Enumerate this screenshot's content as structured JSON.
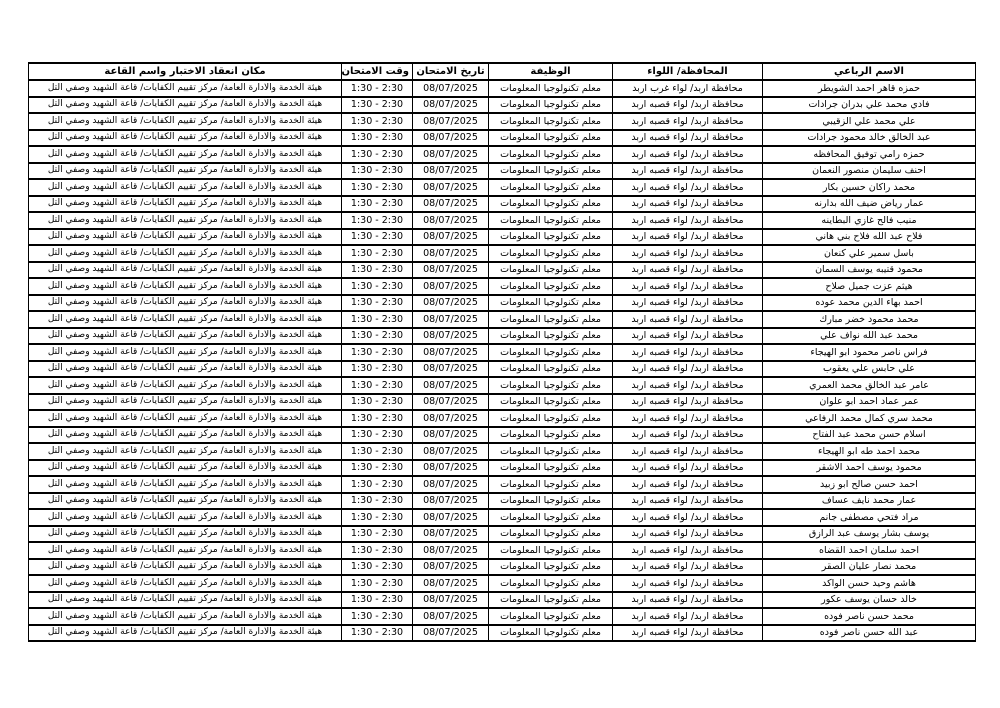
{
  "table": {
    "headers": [
      "الاسم الرباعي",
      "المحافظة/ اللواء",
      "الوظيفة",
      "تاريخ الامتحان",
      "وقت الامتحان",
      "مكان انعقاد الاختبار واسم القاعة"
    ],
    "shared": {
      "governorate": "محافظة اربد/ لواء قصبه اربد",
      "job": "معلم تكنولوجيا المعلومات",
      "date": "08/07/2025",
      "time": "1:30 - 2:30",
      "location": "هيئة الخدمة والادارة العامة/ مركز تقييم الكفايات/ قاعة الشهيد وصفي التل"
    },
    "rows": [
      {
        "name": "حمزه قاهر احمد الشويطر",
        "governorate": "محافظة اربد/ لواء غرب اربد"
      },
      {
        "name": "فادي محمد علي بدران جرادات"
      },
      {
        "name": "علي محمد علي الزقيبي"
      },
      {
        "name": "عبد الخالق خالد محمود جرادات"
      },
      {
        "name": "حمزه رامي توفيق المحافظه"
      },
      {
        "name": "احنف سليمان منصور النعمان"
      },
      {
        "name": "محمد راكان حسين بكار"
      },
      {
        "name": "عمار رياض ضيف الله بدارنه"
      },
      {
        "name": "منيب فالح غازي البطاينه"
      },
      {
        "name": "فلاح عبد الله فلاح بني هاني"
      },
      {
        "name": "باسل سمير علي كنعان"
      },
      {
        "name": "محمود قتيبه يوسف السمان"
      },
      {
        "name": "هيثم عزت جميل صلاح"
      },
      {
        "name": "احمد بهاء الدين محمد عوده"
      },
      {
        "name": "محمد محمود خضر مبارك"
      },
      {
        "name": "محمد عبد الله نواف علي"
      },
      {
        "name": "فراس ناصر محمود ابو الهيجاء"
      },
      {
        "name": "علي حابس علي يعقوب"
      },
      {
        "name": "عامر عبد الخالق محمد العمري"
      },
      {
        "name": "عمر عماد احمد ابو علوان"
      },
      {
        "name": "محمد سري كمال محمد الرفاعي"
      },
      {
        "name": "اسلام حسن محمد عبد الفتاح"
      },
      {
        "name": "محمد احمد طه ابو الهيجاء"
      },
      {
        "name": "محمود يوسف احمد الاشقر"
      },
      {
        "name": "احمد حسن صالح ابو زبيد"
      },
      {
        "name": "عمار محمد نايف عساف"
      },
      {
        "name": "مراد فتحي مصطفى جانم"
      },
      {
        "name": "يوسف بشار يوسف عبد الرازق"
      },
      {
        "name": "احمد سلمان احمد القضاه"
      },
      {
        "name": "محمد نصار عليان الصقر"
      },
      {
        "name": "هاشم وحيد حسن الواكد"
      },
      {
        "name": "خالد حسان يوسف عكور"
      },
      {
        "name": "محمد حسن ناصر فوده"
      },
      {
        "name": "عبد الله حسن ناصر فوده"
      }
    ]
  },
  "colors": {
    "page_background": "#ffffff",
    "border": "#000000",
    "text": "#000000"
  }
}
